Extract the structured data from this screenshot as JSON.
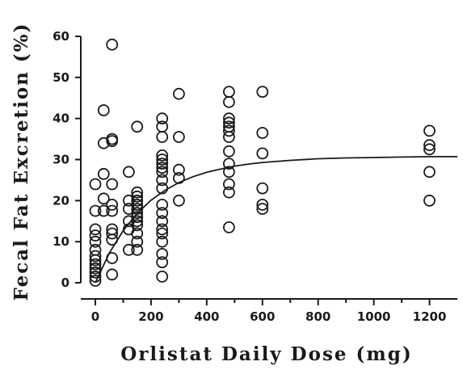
{
  "chart_data": {
    "type": "scatter",
    "title": "",
    "xlabel": "Orlistat Daily Dose (mg)",
    "ylabel": "Fecal Fat Excretion (%)",
    "xlim": [
      0,
      1300
    ],
    "ylim": [
      0,
      60
    ],
    "x_ticks": [
      "0",
      "200",
      "400",
      "600",
      "800",
      "1000",
      "1200"
    ],
    "y_ticks": [
      "0",
      "10",
      "20",
      "30",
      "40",
      "50",
      "60"
    ],
    "grid": false,
    "legend": "none",
    "marker": "open-circle",
    "points": [
      [
        0,
        0.5
      ],
      [
        0,
        1.5
      ],
      [
        0,
        2.5
      ],
      [
        0,
        3.5
      ],
      [
        0,
        4.5
      ],
      [
        0,
        5.5
      ],
      [
        0,
        6.5
      ],
      [
        0,
        8
      ],
      [
        0,
        10
      ],
      [
        0,
        11.5
      ],
      [
        0,
        13
      ],
      [
        0,
        17.5
      ],
      [
        0,
        24
      ],
      [
        30,
        17.5
      ],
      [
        30,
        20.5
      ],
      [
        30,
        26.5
      ],
      [
        30,
        34
      ],
      [
        30,
        42
      ],
      [
        60,
        58
      ],
      [
        60,
        34.5
      ],
      [
        60,
        35
      ],
      [
        60,
        24
      ],
      [
        60,
        19
      ],
      [
        60,
        17.5
      ],
      [
        60,
        13
      ],
      [
        60,
        12
      ],
      [
        60,
        10.5
      ],
      [
        60,
        6
      ],
      [
        60,
        2
      ],
      [
        120,
        27
      ],
      [
        120,
        20
      ],
      [
        120,
        18
      ],
      [
        120,
        15
      ],
      [
        120,
        13
      ],
      [
        120,
        8
      ],
      [
        150,
        38
      ],
      [
        150,
        22
      ],
      [
        150,
        21
      ],
      [
        150,
        20
      ],
      [
        150,
        19
      ],
      [
        150,
        18
      ],
      [
        150,
        17
      ],
      [
        150,
        16
      ],
      [
        150,
        15
      ],
      [
        150,
        14
      ],
      [
        150,
        12
      ],
      [
        150,
        10
      ],
      [
        150,
        8
      ],
      [
        240,
        40
      ],
      [
        240,
        38
      ],
      [
        240,
        35.5
      ],
      [
        240,
        31
      ],
      [
        240,
        30
      ],
      [
        240,
        29
      ],
      [
        240,
        28
      ],
      [
        240,
        27
      ],
      [
        240,
        25
      ],
      [
        240,
        23
      ],
      [
        240,
        19
      ],
      [
        240,
        17
      ],
      [
        240,
        15
      ],
      [
        240,
        13
      ],
      [
        240,
        12
      ],
      [
        240,
        10
      ],
      [
        240,
        7
      ],
      [
        240,
        5
      ],
      [
        240,
        1.5
      ],
      [
        300,
        46
      ],
      [
        300,
        35.5
      ],
      [
        300,
        27.5
      ],
      [
        300,
        25.5
      ],
      [
        300,
        20
      ],
      [
        480,
        46.5
      ],
      [
        480,
        44
      ],
      [
        480,
        40
      ],
      [
        480,
        39
      ],
      [
        480,
        38
      ],
      [
        480,
        37
      ],
      [
        480,
        35.5
      ],
      [
        480,
        32
      ],
      [
        480,
        29
      ],
      [
        480,
        27
      ],
      [
        480,
        24
      ],
      [
        480,
        22
      ],
      [
        480,
        13.5
      ],
      [
        600,
        46.5
      ],
      [
        600,
        36.5
      ],
      [
        600,
        31.5
      ],
      [
        600,
        23
      ],
      [
        600,
        19
      ],
      [
        600,
        18
      ],
      [
        1200,
        37
      ],
      [
        1200,
        33.5
      ],
      [
        1200,
        32.5
      ],
      [
        1200,
        27
      ],
      [
        1200,
        20
      ]
    ],
    "fit_curve": {
      "type": "line",
      "x": [
        0,
        50,
        100,
        150,
        200,
        250,
        300,
        350,
        400,
        450,
        500,
        550,
        600,
        700,
        800,
        900,
        1000,
        1100,
        1200,
        1300
      ],
      "y": [
        0,
        7.2,
        12.7,
        16.9,
        20.1,
        22.5,
        24.4,
        25.8,
        26.9,
        27.7,
        28.4,
        28.9,
        29.3,
        29.8,
        30.2,
        30.4,
        30.5,
        30.6,
        30.7,
        30.7
      ]
    }
  }
}
